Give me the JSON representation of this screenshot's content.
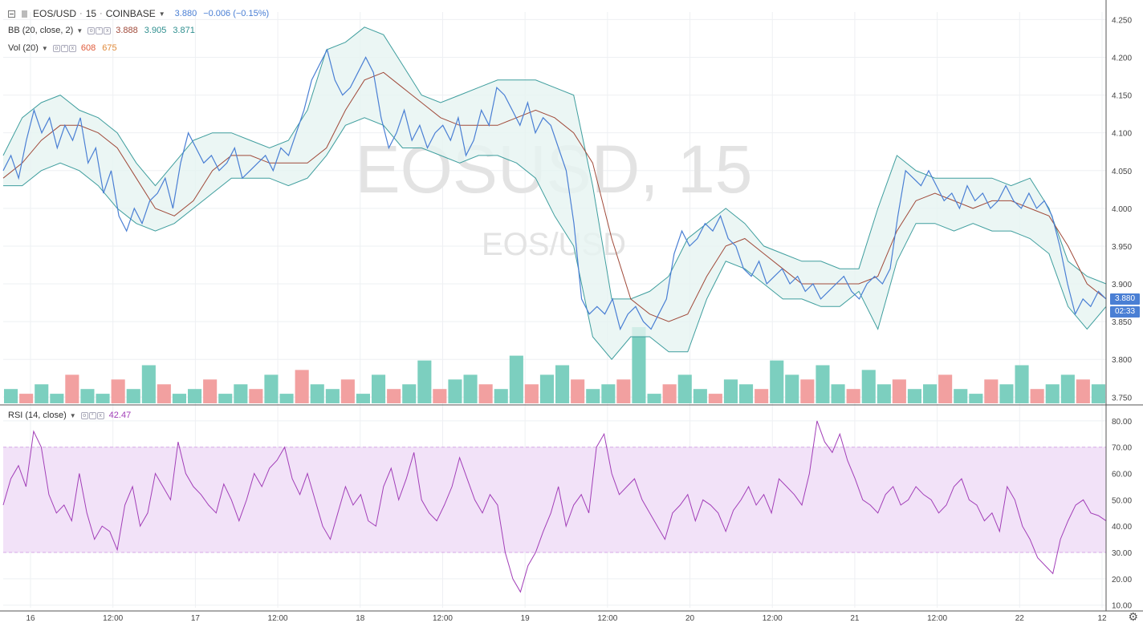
{
  "header": {
    "symbol": "EOS/USD",
    "interval": "15",
    "exchange": "COINBASE",
    "last": "3.880",
    "change": "−0.006 (−0.15%)"
  },
  "bb": {
    "label": "BB (20, close, 2)",
    "basis": "3.888",
    "upper": "3.905",
    "lower": "3.871"
  },
  "vol": {
    "label": "Vol (20)",
    "v1": "608",
    "v2": "675"
  },
  "rsi": {
    "label": "RSI (14, close)",
    "value": "42.47"
  },
  "watermark": {
    "main": "EOSUSD, 15",
    "sub": "EOS/USD"
  },
  "price_tags": {
    "last": "3.880",
    "countdown": "02:33"
  },
  "icons": {
    "settings": "gear-icon"
  },
  "colors": {
    "price_line": "#4a7fd4",
    "bb_band": "#3f9e9e",
    "bb_basis": "#a04a3a",
    "bb_fill": "#e6f4f1",
    "vol_up": "#7ccfbf",
    "vol_down": "#f2a0a0",
    "rsi_line": "#a23fb8",
    "rsi_fill": "#f2e2f8",
    "rsi_band_line": "#d6a8e6"
  },
  "chart_data": [
    {
      "type": "line",
      "title": "EOS/USD · 15 · COINBASE",
      "x_ticks": [
        "16",
        "12:00",
        "17",
        "12:00",
        "18",
        "12:00",
        "19",
        "12:00",
        "20",
        "12:00",
        "21",
        "12:00",
        "22",
        "12"
      ],
      "y_ticks": [
        "4.250",
        "4.200",
        "4.150",
        "4.100",
        "4.050",
        "4.000",
        "3.950",
        "3.900",
        "3.850",
        "3.800",
        "3.750"
      ],
      "ylim": [
        3.745,
        4.26
      ],
      "grid": true,
      "series": [
        {
          "name": "EOS/USD",
          "values": [
            4.05,
            4.07,
            4.04,
            4.09,
            4.13,
            4.1,
            4.12,
            4.08,
            4.11,
            4.09,
            4.12,
            4.06,
            4.08,
            4.02,
            4.05,
            3.99,
            3.97,
            4.0,
            3.98,
            4.01,
            4.02,
            4.04,
            4.0,
            4.06,
            4.1,
            4.08,
            4.06,
            4.07,
            4.05,
            4.06,
            4.08,
            4.04,
            4.05,
            4.06,
            4.07,
            4.05,
            4.08,
            4.07,
            4.1,
            4.13,
            4.17,
            4.19,
            4.21,
            4.17,
            4.15,
            4.16,
            4.18,
            4.2,
            4.18,
            4.12,
            4.08,
            4.1,
            4.13,
            4.09,
            4.11,
            4.08,
            4.1,
            4.11,
            4.09,
            4.12,
            4.07,
            4.09,
            4.13,
            4.11,
            4.16,
            4.15,
            4.13,
            4.11,
            4.14,
            4.1,
            4.12,
            4.11,
            4.08,
            4.05,
            3.98,
            3.88,
            3.86,
            3.87,
            3.86,
            3.88,
            3.84,
            3.86,
            3.87,
            3.85,
            3.84,
            3.86,
            3.88,
            3.94,
            3.97,
            3.95,
            3.96,
            3.98,
            3.97,
            3.99,
            3.96,
            3.95,
            3.92,
            3.91,
            3.93,
            3.9,
            3.91,
            3.92,
            3.9,
            3.91,
            3.89,
            3.9,
            3.88,
            3.89,
            3.9,
            3.91,
            3.89,
            3.88,
            3.9,
            3.91,
            3.9,
            3.92,
            3.99,
            4.05,
            4.04,
            4.03,
            4.05,
            4.03,
            4.01,
            4.02,
            4.0,
            4.03,
            4.01,
            4.02,
            4.0,
            4.01,
            4.03,
            4.01,
            4.0,
            4.02,
            4.0,
            4.01,
            3.99,
            3.95,
            3.9,
            3.86,
            3.88,
            3.87,
            3.89,
            3.88
          ]
        },
        {
          "name": "BB basis",
          "values": [
            4.04,
            4.06,
            4.09,
            4.11,
            4.11,
            4.1,
            4.08,
            4.04,
            4.0,
            3.99,
            4.01,
            4.05,
            4.07,
            4.07,
            4.06,
            4.06,
            4.06,
            4.08,
            4.13,
            4.17,
            4.18,
            4.16,
            4.14,
            4.12,
            4.11,
            4.11,
            4.11,
            4.12,
            4.13,
            4.12,
            4.1,
            4.06,
            3.96,
            3.88,
            3.86,
            3.85,
            3.86,
            3.91,
            3.95,
            3.96,
            3.94,
            3.92,
            3.9,
            3.9,
            3.9,
            3.9,
            3.91,
            3.97,
            4.01,
            4.02,
            4.01,
            4.0,
            4.01,
            4.01,
            4.0,
            3.99,
            3.95,
            3.9,
            3.88
          ]
        },
        {
          "name": "BB upper",
          "values": [
            4.07,
            4.12,
            4.14,
            4.15,
            4.13,
            4.12,
            4.1,
            4.06,
            4.03,
            4.06,
            4.09,
            4.1,
            4.1,
            4.09,
            4.08,
            4.09,
            4.13,
            4.21,
            4.22,
            4.24,
            4.23,
            4.19,
            4.15,
            4.14,
            4.15,
            4.16,
            4.17,
            4.17,
            4.17,
            4.16,
            4.15,
            4.03,
            3.88,
            3.88,
            3.89,
            3.91,
            3.96,
            3.98,
            4.0,
            3.98,
            3.95,
            3.94,
            3.93,
            3.93,
            3.92,
            3.92,
            4.0,
            4.07,
            4.05,
            4.04,
            4.04,
            4.04,
            4.04,
            4.03,
            4.04,
            4.0,
            3.93,
            3.91,
            3.9
          ]
        },
        {
          "name": "BB lower",
          "values": [
            4.03,
            4.03,
            4.05,
            4.06,
            4.05,
            4.03,
            4.0,
            3.98,
            3.97,
            3.98,
            4.0,
            4.02,
            4.04,
            4.04,
            4.04,
            4.03,
            4.04,
            4.07,
            4.11,
            4.12,
            4.11,
            4.08,
            4.08,
            4.07,
            4.06,
            4.07,
            4.07,
            4.06,
            4.04,
            3.99,
            3.95,
            3.83,
            3.8,
            3.83,
            3.83,
            3.81,
            3.81,
            3.88,
            3.93,
            3.92,
            3.9,
            3.88,
            3.88,
            3.87,
            3.87,
            3.89,
            3.84,
            3.93,
            3.98,
            3.98,
            3.97,
            3.98,
            3.97,
            3.97,
            3.96,
            3.94,
            3.87,
            3.84,
            3.87
          ]
        }
      ]
    },
    {
      "type": "bar",
      "title": "Vol (20)",
      "series": [
        {
          "name": "Vol (20)",
          "values": [
            3,
            2,
            4,
            2,
            6,
            3,
            2,
            5,
            3,
            8,
            4,
            2,
            3,
            5,
            2,
            4,
            3,
            6,
            2,
            7,
            4,
            3,
            5,
            2,
            6,
            3,
            4,
            9,
            3,
            5,
            6,
            4,
            3,
            10,
            4,
            6,
            8,
            5,
            3,
            4,
            5,
            16,
            2,
            4,
            6,
            3,
            2,
            5,
            4,
            3,
            9,
            6,
            5,
            8,
            4,
            3,
            7,
            4,
            5,
            3,
            4,
            6,
            3,
            2,
            5,
            4,
            8,
            3,
            4,
            6,
            5,
            4
          ]
        }
      ]
    },
    {
      "type": "line",
      "title": "RSI (14, close)",
      "y_ticks": [
        "80.00",
        "70.00",
        "60.00",
        "50.00",
        "40.00",
        "30.00",
        "20.00",
        "10.00"
      ],
      "ylim": [
        9,
        83
      ],
      "band": [
        30,
        70
      ],
      "series": [
        {
          "name": "RSI (14, close)",
          "values": [
            48,
            58,
            63,
            55,
            76,
            70,
            52,
            45,
            48,
            42,
            60,
            45,
            35,
            40,
            38,
            31,
            48,
            55,
            40,
            45,
            60,
            55,
            50,
            72,
            60,
            55,
            52,
            48,
            45,
            56,
            50,
            42,
            50,
            60,
            55,
            62,
            65,
            70,
            58,
            52,
            60,
            50,
            40,
            35,
            45,
            55,
            48,
            52,
            42,
            40,
            55,
            62,
            50,
            58,
            68,
            50,
            45,
            42,
            48,
            55,
            66,
            58,
            50,
            45,
            52,
            48,
            30,
            20,
            15,
            25,
            30,
            38,
            45,
            55,
            40,
            48,
            52,
            45,
            70,
            75,
            60,
            52,
            55,
            58,
            50,
            45,
            40,
            35,
            45,
            48,
            52,
            42,
            50,
            48,
            45,
            38,
            46,
            50,
            55,
            48,
            52,
            45,
            58,
            55,
            52,
            48,
            60,
            80,
            72,
            68,
            75,
            65,
            58,
            50,
            48,
            45,
            52,
            55,
            48,
            50,
            55,
            52,
            50,
            45,
            48,
            55,
            58,
            50,
            48,
            42,
            45,
            38,
            55,
            50,
            40,
            35,
            28,
            25,
            22,
            35,
            42,
            48,
            50,
            45,
            44,
            42
          ]
        }
      ]
    }
  ]
}
